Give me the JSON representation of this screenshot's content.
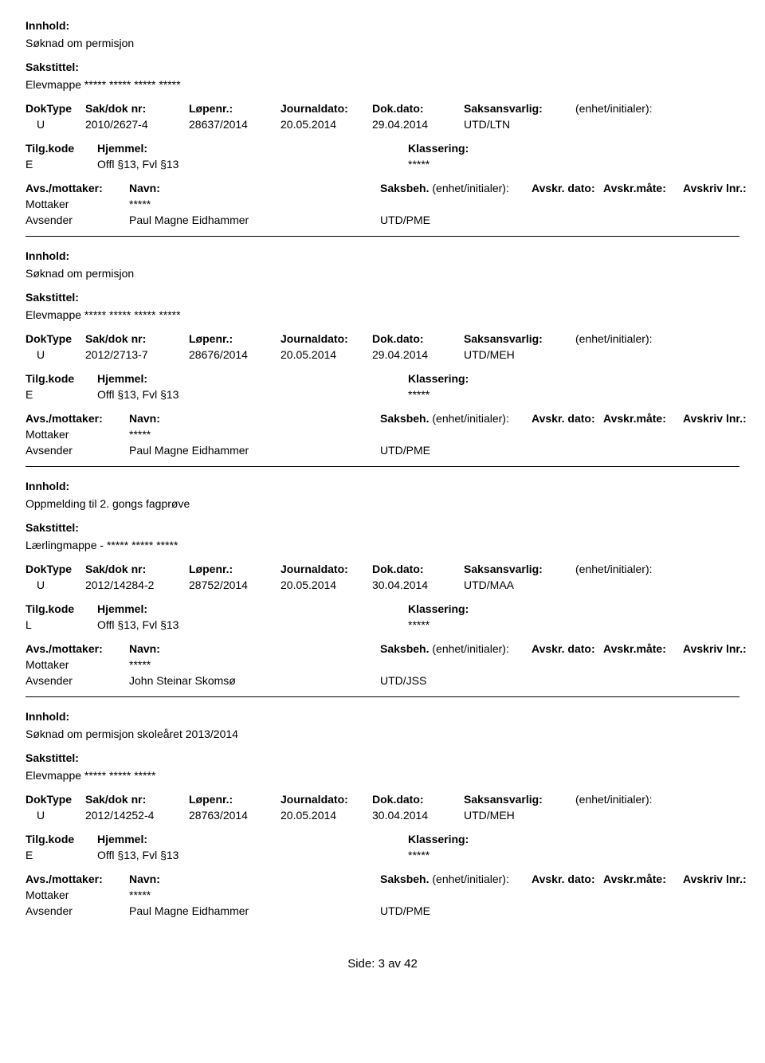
{
  "labels": {
    "innhold": "Innhold:",
    "sakstittel": "Sakstittel:",
    "dokType": "DokType",
    "sakDokNr": "Sak/dok nr:",
    "lopenr": "Løpenr.:",
    "journaldato": "Journaldato:",
    "dokDato": "Dok.dato:",
    "saksansvarlig": "Saksansvarlig:",
    "enhetInitialer": "(enhet/initialer):",
    "tilgKode": "Tilg.kode",
    "hjemmel": "Hjemmel:",
    "klassering": "Klassering:",
    "avsMottaker": "Avs./mottaker:",
    "navn": "Navn:",
    "saksbeh": "Saksbeh.",
    "saksbehEnhet": "(enhet/initialer):",
    "avskrDato": "Avskr. dato:",
    "avskrMate": "Avskr.måte:",
    "avskrivLnr": "Avskriv lnr.:",
    "mottaker": "Mottaker",
    "avsender": "Avsender"
  },
  "records": [
    {
      "innhold": "Søknad om permisjon",
      "sakstittel": "Elevmappe ***** ***** ***** *****",
      "dokType": "U",
      "sakDokNr": "2010/2627-4",
      "lopenr": "28637/2014",
      "journaldato": "20.05.2014",
      "dokDato": "29.04.2014",
      "saksansvarlig": "UTD/LTN",
      "tilgKode": "E",
      "hjemmel": "Offl §13, Fvl §13",
      "klassering": "*****",
      "mottakerNavn": "*****",
      "avsenderNavn": "Paul Magne Eidhammer",
      "avsenderEnhet": "UTD/PME"
    },
    {
      "innhold": "Søknad om permisjon",
      "sakstittel": "Elevmappe ***** ***** ***** *****",
      "dokType": "U",
      "sakDokNr": "2012/2713-7",
      "lopenr": "28676/2014",
      "journaldato": "20.05.2014",
      "dokDato": "29.04.2014",
      "saksansvarlig": "UTD/MEH",
      "tilgKode": "E",
      "hjemmel": "Offl §13, Fvl §13",
      "klassering": "*****",
      "mottakerNavn": "*****",
      "avsenderNavn": "Paul Magne Eidhammer",
      "avsenderEnhet": "UTD/PME"
    },
    {
      "innhold": "Oppmelding til 2. gongs fagprøve",
      "sakstittel": "Lærlingmappe - ***** ***** *****",
      "dokType": "U",
      "sakDokNr": "2012/14284-2",
      "lopenr": "28752/2014",
      "journaldato": "20.05.2014",
      "dokDato": "30.04.2014",
      "saksansvarlig": "UTD/MAA",
      "tilgKode": "L",
      "hjemmel": "Offl §13, Fvl §13",
      "klassering": "*****",
      "mottakerNavn": "*****",
      "avsenderNavn": "John Steinar Skomsø",
      "avsenderEnhet": "UTD/JSS"
    },
    {
      "innhold": "Søknad om permisjon skoleåret 2013/2014",
      "sakstittel": "Elevmappe ***** ***** *****",
      "dokType": "U",
      "sakDokNr": "2012/14252-4",
      "lopenr": "28763/2014",
      "journaldato": "20.05.2014",
      "dokDato": "30.04.2014",
      "saksansvarlig": "UTD/MEH",
      "tilgKode": "E",
      "hjemmel": "Offl §13, Fvl §13",
      "klassering": "*****",
      "mottakerNavn": "*****",
      "avsenderNavn": "Paul Magne Eidhammer",
      "avsenderEnhet": "UTD/PME"
    }
  ],
  "footer": {
    "text": "Side:  3 av  42"
  }
}
